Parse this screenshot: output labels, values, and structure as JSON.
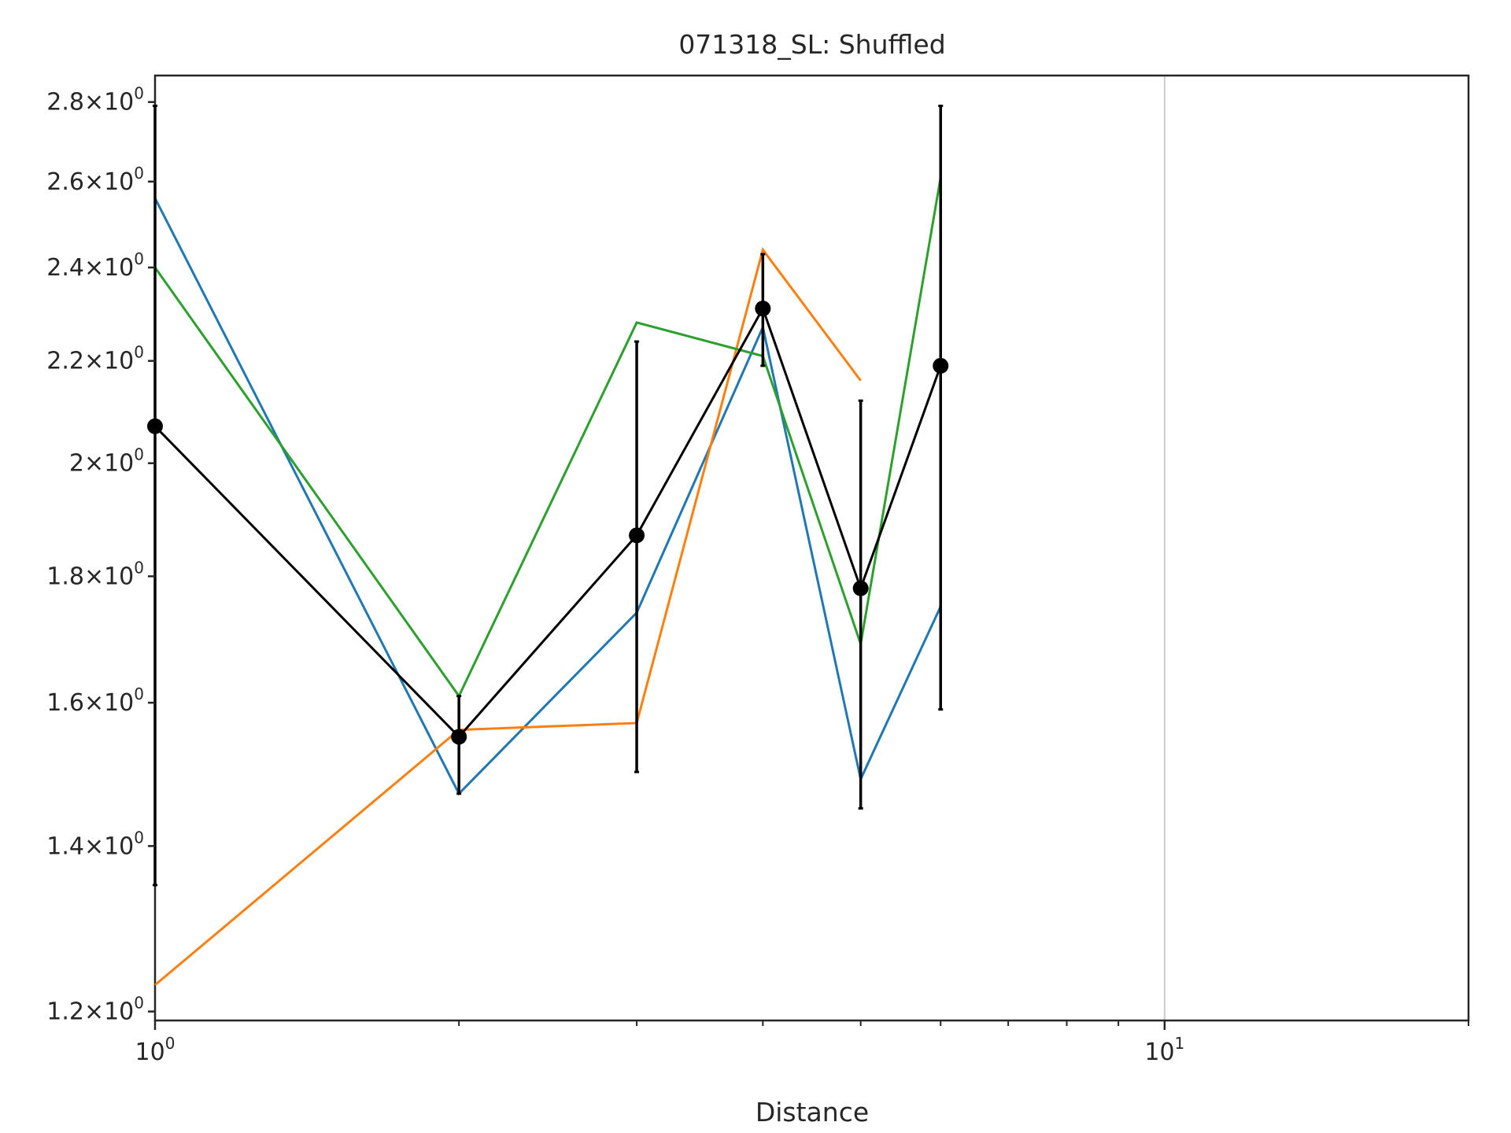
{
  "chart_data": {
    "type": "line",
    "title": "071318_SL: Shuffled",
    "xlabel": "Distance",
    "ylabel": "",
    "xscale": "log",
    "yscale": "log",
    "xlim": [
      1,
      20
    ],
    "ylim": [
      1.19,
      2.87
    ],
    "grid": false,
    "vertical_line_x": 10,
    "x_ticks": [
      {
        "value": 1,
        "base": "10",
        "exp": "0"
      },
      {
        "value": 10,
        "base": "10",
        "exp": "1"
      }
    ],
    "y_ticks": [
      {
        "value": 1.2,
        "mant": "1.2",
        "exp": "0"
      },
      {
        "value": 1.4,
        "mant": "1.4",
        "exp": "0"
      },
      {
        "value": 1.6,
        "mant": "1.6",
        "exp": "0"
      },
      {
        "value": 1.8,
        "mant": "1.8",
        "exp": "0"
      },
      {
        "value": 2.0,
        "mant": "2",
        "exp": "0"
      },
      {
        "value": 2.2,
        "mant": "2.2",
        "exp": "0"
      },
      {
        "value": 2.4,
        "mant": "2.4",
        "exp": "0"
      },
      {
        "value": 2.6,
        "mant": "2.6",
        "exp": "0"
      },
      {
        "value": 2.8,
        "mant": "2.8",
        "exp": "0"
      }
    ],
    "series": [
      {
        "color": "#1f77b4",
        "x": [
          1,
          2,
          3,
          4,
          5,
          6
        ],
        "y": [
          2.56,
          1.47,
          1.74,
          2.27,
          1.49,
          1.75
        ]
      },
      {
        "color": "#ff7f0e",
        "x": [
          1,
          2,
          3,
          4,
          5
        ],
        "y": [
          1.23,
          1.56,
          1.57,
          2.44,
          2.16
        ]
      },
      {
        "color": "#2ca02c",
        "x": [
          1,
          2,
          3,
          4,
          5,
          6
        ],
        "y": [
          2.4,
          1.61,
          2.28,
          2.21,
          1.69,
          2.61
        ]
      },
      {
        "color": "#000000",
        "x": [
          1,
          2,
          3,
          4,
          5,
          6
        ],
        "y": [
          2.07,
          1.55,
          1.87,
          2.31,
          1.78,
          2.19
        ],
        "yerr_low": [
          1.35,
          1.47,
          1.5,
          2.19,
          1.45,
          1.59
        ],
        "yerr_high": [
          2.79,
          1.61,
          2.24,
          2.43,
          2.12,
          2.79
        ],
        "markers": true
      }
    ]
  }
}
